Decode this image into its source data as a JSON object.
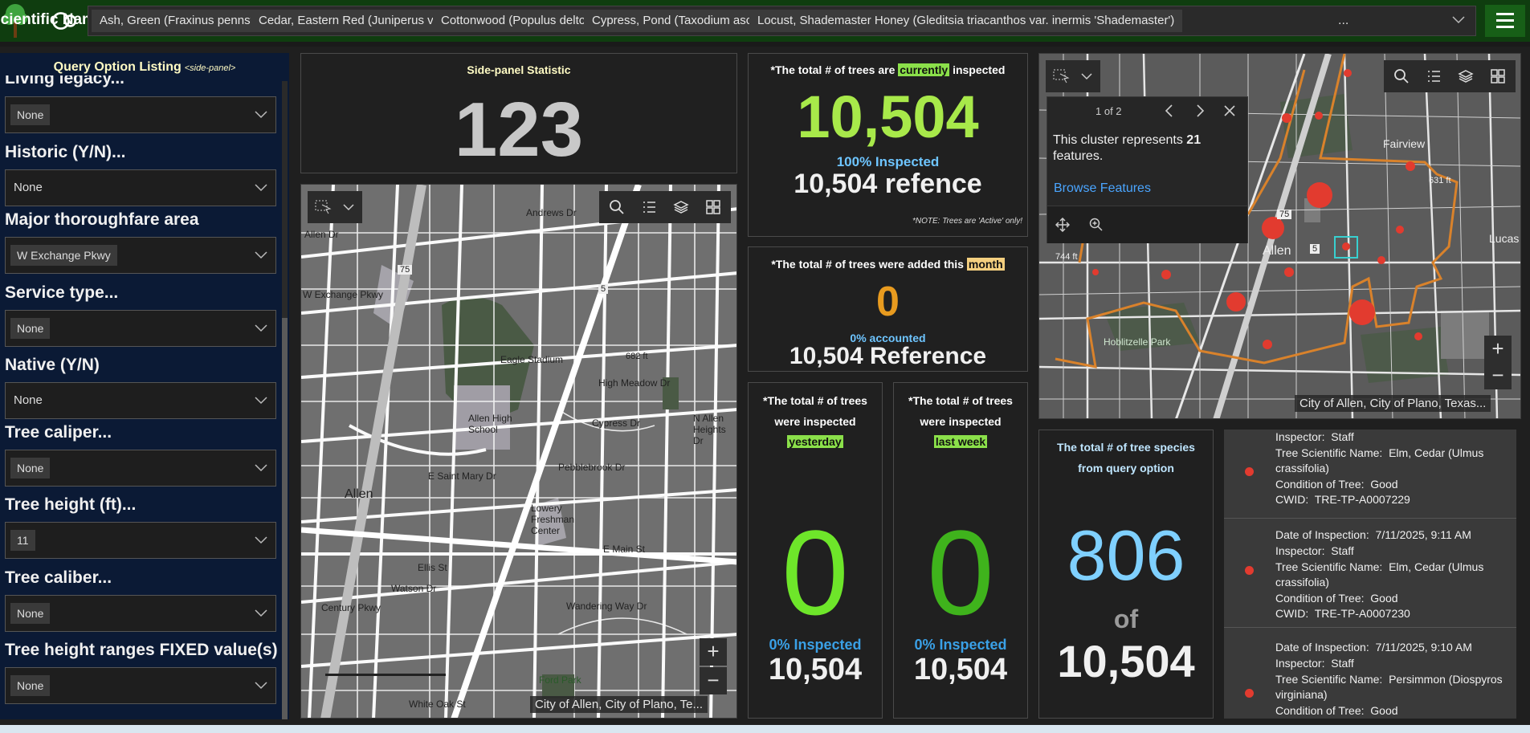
{
  "header": {
    "title": "Scientific Name(s)",
    "chips": [
      "Ash, Green (Fraxinus pennsylvanica)",
      "Cedar, Eastern Red (Juniperus virginiana)",
      "Cottonwood (Populus deltoides)",
      "Cypress, Pond (Taxodium ascendens)",
      "Locust, Shademaster Honey (Gleditsia triacanthos var. inermis 'Shademaster')"
    ],
    "more": "...",
    "colors": {
      "header_bg": "#0f3d0f",
      "menu_bg": "#175f17"
    }
  },
  "side_panel": {
    "title": "Query Option Listing",
    "tag": "<side-panel>",
    "filters": [
      {
        "label": "Living legacy...",
        "value": "None"
      },
      {
        "label": "Historic (Y/N)...",
        "value": "None"
      },
      {
        "label": "Major thoroughfare area",
        "value": "W Exchange Pkwy"
      },
      {
        "label": "Service type...",
        "value": "None"
      },
      {
        "label": "Native (Y/N)",
        "value": "None"
      },
      {
        "label": "Tree caliper...",
        "value": "None"
      },
      {
        "label": "Tree height (ft)...",
        "value": "11"
      },
      {
        "label": "Tree caliber...",
        "value": "None"
      },
      {
        "label": "Tree height ranges FIXED value(s)",
        "value": "None"
      }
    ]
  },
  "side_stat": {
    "title": "Side-panel Statistic",
    "value": "123"
  },
  "inspected": {
    "pre": "*The total # of trees are",
    "highlight": "currently",
    "post": "inspected",
    "value": "10,504",
    "percent": "100% Inspected",
    "reference": "10,504 refence",
    "note": "*NOTE:  Trees are 'Active' only!"
  },
  "added": {
    "pre": "*The total # of trees were added this",
    "highlight": "month",
    "value": "0",
    "percent": "0% accounted",
    "reference": "10,504 Reference"
  },
  "yesterday": {
    "line1": "*The total # of trees",
    "line2": "were inspected",
    "highlight": "yesterday",
    "value": "0",
    "percent": "0% Inspected",
    "total": "10,504"
  },
  "last_week": {
    "line1": "*The total # of trees",
    "line2": "were inspected",
    "highlight": "last week",
    "value": "0",
    "percent": "0% Inspected",
    "total": "10,504"
  },
  "species": {
    "line1": "The total # of tree species",
    "line2": "from query option",
    "value": "806",
    "of": "of",
    "total": "10,504"
  },
  "map_left": {
    "attribution": "City of Allen, City of Plano, Te...",
    "labels": [
      "Allen",
      "Allen High School",
      "Eagle Stadium",
      "Lowery Freshman Center",
      "High Meadow Dr",
      "Cypress Dr",
      "Pebblebrook Dr",
      "E Main St",
      "Andrews Dr",
      "Ellis St",
      "Watson Dr",
      "Wandering Way Dr",
      "Ford Park",
      "White Oak St",
      "W Exchange Pkwy",
      "Century Pkwy",
      "E Saint Mary Dr",
      "N Allen Heights Dr",
      "Allen Dr",
      "75",
      "5",
      "682 ft"
    ]
  },
  "map_right": {
    "attribution": "City of Allen, City of Plano, Texas...",
    "labels": [
      "Fairview",
      "Allen",
      "Lucas",
      "Hoblitzelle Park",
      "75",
      "5",
      "631 ft",
      "744 ft"
    ],
    "popup": {
      "pager": "1 of 2",
      "text_pre": "This cluster represents",
      "count": "21",
      "text_post": "features.",
      "link": "Browse Features"
    }
  },
  "features": [
    {
      "date": "",
      "inspector": "Staff",
      "sci": "Elm, Cedar (Ulmus",
      "sci2": "crassifolia)",
      "condition": "Good",
      "cwid": "TRE-TP-A0007229"
    },
    {
      "date": "7/11/2025, 9:11 AM",
      "inspector": "Staff",
      "sci": "Elm, Cedar (Ulmus",
      "sci2": "crassifolia)",
      "condition": "Good",
      "cwid": "TRE-TP-A0007230"
    },
    {
      "date": "7/11/2025, 9:10 AM",
      "inspector": "Staff",
      "sci": "Persimmon (Diospyros",
      "sci2": "virginiana)",
      "condition": "Good",
      "cwid": ""
    }
  ],
  "feature_labels": {
    "date": "Date of Inspection:",
    "inspector": "Inspector:",
    "sci": "Tree Scientific Name:",
    "condition": "Condition of Tree:",
    "cwid": "CWID:"
  }
}
